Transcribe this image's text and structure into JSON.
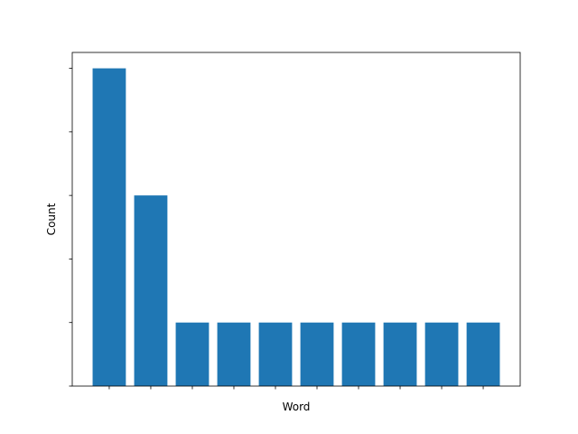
{
  "chart_data": {
    "type": "bar",
    "title": "",
    "xlabel": "Word",
    "ylabel": "Count",
    "categories": [
      "",
      "",
      "",
      "",
      "",
      "",
      "",
      "",
      "",
      ""
    ],
    "values": [
      5,
      3,
      1,
      1,
      1,
      1,
      1,
      1,
      1,
      1
    ],
    "ylim": [
      0,
      5.25
    ],
    "y_ticks": [
      0,
      1,
      2,
      3,
      4,
      5
    ],
    "x_tick_labels_visible": false,
    "y_tick_labels_visible": false,
    "grid": false,
    "bar_color": "#1f77b4"
  }
}
